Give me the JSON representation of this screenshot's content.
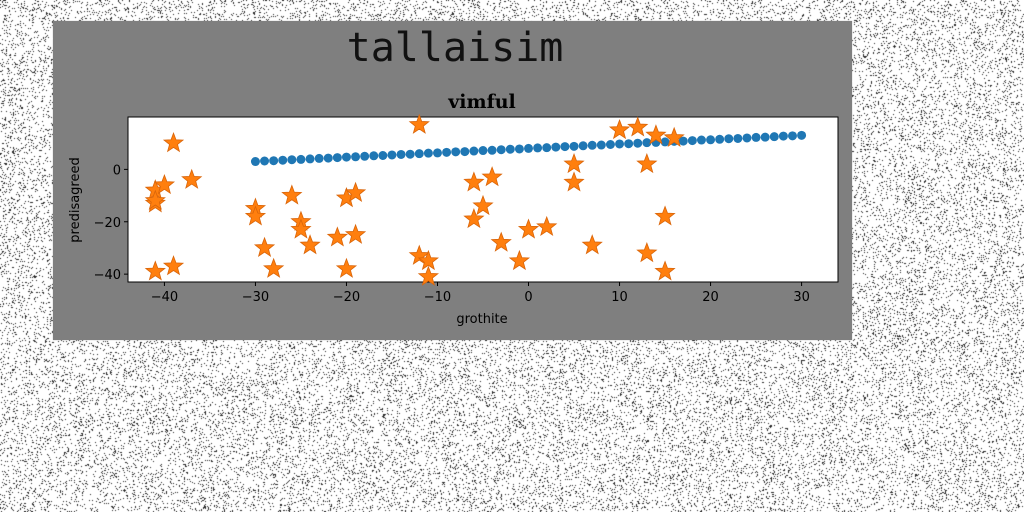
{
  "page_title": "tallaisim",
  "chart_data": {
    "type": "scatter",
    "title": "vimful",
    "xlabel": "grothite",
    "ylabel": "predisagreed",
    "xlim": [
      -44,
      34
    ],
    "ylim": [
      -43,
      20
    ],
    "xticks": [
      -40,
      -30,
      -20,
      -10,
      0,
      10,
      20,
      30
    ],
    "yticks": [
      -40,
      -20,
      0
    ],
    "grid": false,
    "series": [
      {
        "marker": "circle",
        "color": "#1f77b4",
        "x": [
          -30,
          -29,
          -28,
          -27,
          -26,
          -25,
          -24,
          -23,
          -22,
          -21,
          -20,
          -19,
          -18,
          -17,
          -16,
          -15,
          -14,
          -13,
          -12,
          -11,
          -10,
          -9,
          -8,
          -7,
          -6,
          -5,
          -4,
          -3,
          -2,
          -1,
          0,
          1,
          2,
          3,
          4,
          5,
          6,
          7,
          8,
          9,
          10,
          11,
          12,
          13,
          14,
          15,
          16,
          17,
          18,
          19,
          20,
          21,
          22,
          23,
          24,
          25,
          26,
          27,
          28,
          29,
          30
        ],
        "y": [
          3.0,
          3.2,
          3.3,
          3.5,
          3.7,
          3.8,
          4.0,
          4.2,
          4.3,
          4.5,
          4.7,
          4.8,
          5.0,
          5.2,
          5.3,
          5.5,
          5.7,
          5.8,
          6.0,
          6.2,
          6.3,
          6.5,
          6.7,
          6.8,
          7.0,
          7.2,
          7.3,
          7.5,
          7.7,
          7.8,
          8.0,
          8.2,
          8.3,
          8.5,
          8.7,
          8.8,
          9.0,
          9.2,
          9.3,
          9.5,
          9.7,
          9.8,
          10.0,
          10.2,
          10.3,
          10.5,
          10.7,
          10.8,
          11.0,
          11.2,
          11.3,
          11.5,
          11.7,
          11.8,
          12.0,
          12.2,
          12.3,
          12.5,
          12.7,
          12.8,
          13.0
        ]
      },
      {
        "marker": "star",
        "color": "#ff7f0e",
        "x": [
          -41,
          -41,
          -40,
          -41,
          -39,
          -37,
          -41,
          -39,
          -30,
          -30,
          -29,
          -28,
          -26,
          -25,
          -25,
          -24,
          -21,
          -20,
          -20,
          -19,
          -19,
          -12,
          -12,
          -11,
          -11,
          -6,
          -6,
          -5,
          -4,
          -3,
          -1,
          0,
          2,
          5,
          5,
          7,
          10,
          12,
          13,
          13,
          14,
          15,
          15,
          16
        ],
        "y": [
          -8,
          -13,
          -6,
          -39,
          10,
          -4,
          -12,
          -37,
          -15,
          -18,
          -30,
          -38,
          -10,
          -20,
          -23,
          -29,
          -26,
          -11,
          -38,
          -9,
          -25,
          17,
          -33,
          -35,
          -41,
          -5,
          -19,
          -14,
          -3,
          -28,
          -35,
          -23,
          -22,
          2,
          -5,
          -29,
          15,
          16,
          2,
          -32,
          13,
          -18,
          -39,
          12
        ]
      }
    ]
  }
}
